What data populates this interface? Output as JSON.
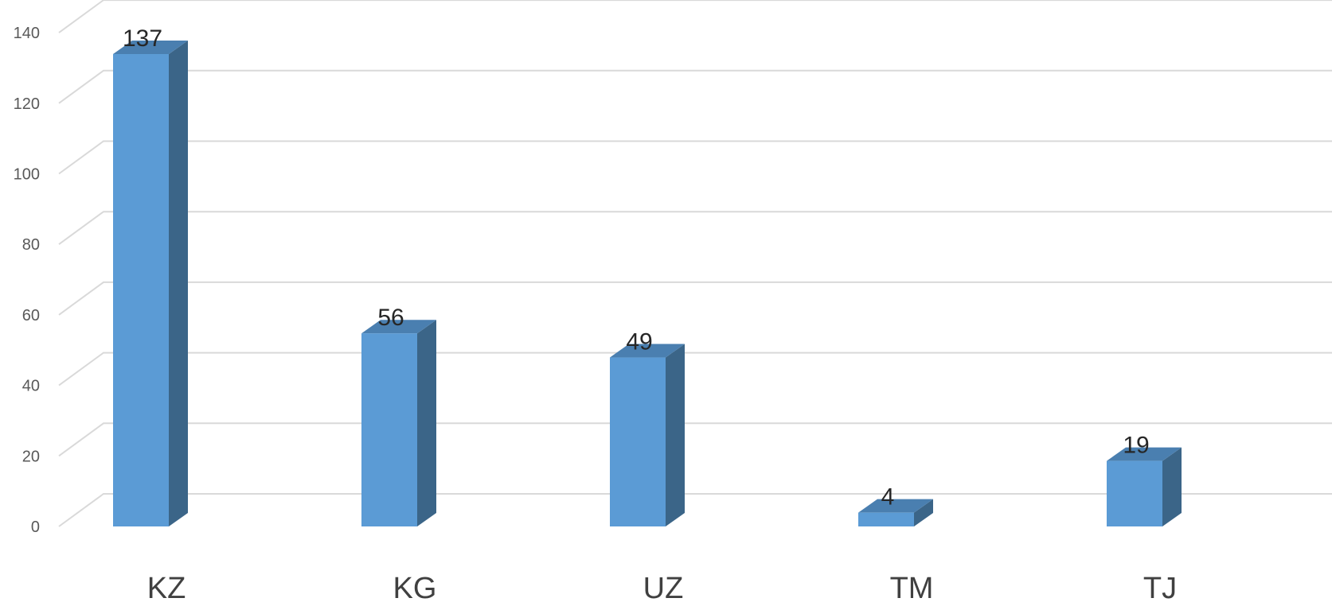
{
  "chart_data": {
    "type": "bar",
    "style": "3d-column",
    "categories": [
      "KZ",
      "KG",
      "UZ",
      "TM",
      "TJ"
    ],
    "values": [
      137,
      56,
      49,
      4,
      19
    ],
    "title": "",
    "xlabel": "",
    "ylabel": "",
    "ylim": [
      0,
      140
    ],
    "yticks": [
      0,
      20,
      40,
      60,
      80,
      100,
      120,
      140
    ],
    "grid": true,
    "legend": "none",
    "data_labels": true,
    "colors": {
      "bar_front": "#5b9bd5",
      "bar_side": "#3b6588",
      "bar_top": "#4a7fb0",
      "grid": "#d9d9d9"
    }
  }
}
